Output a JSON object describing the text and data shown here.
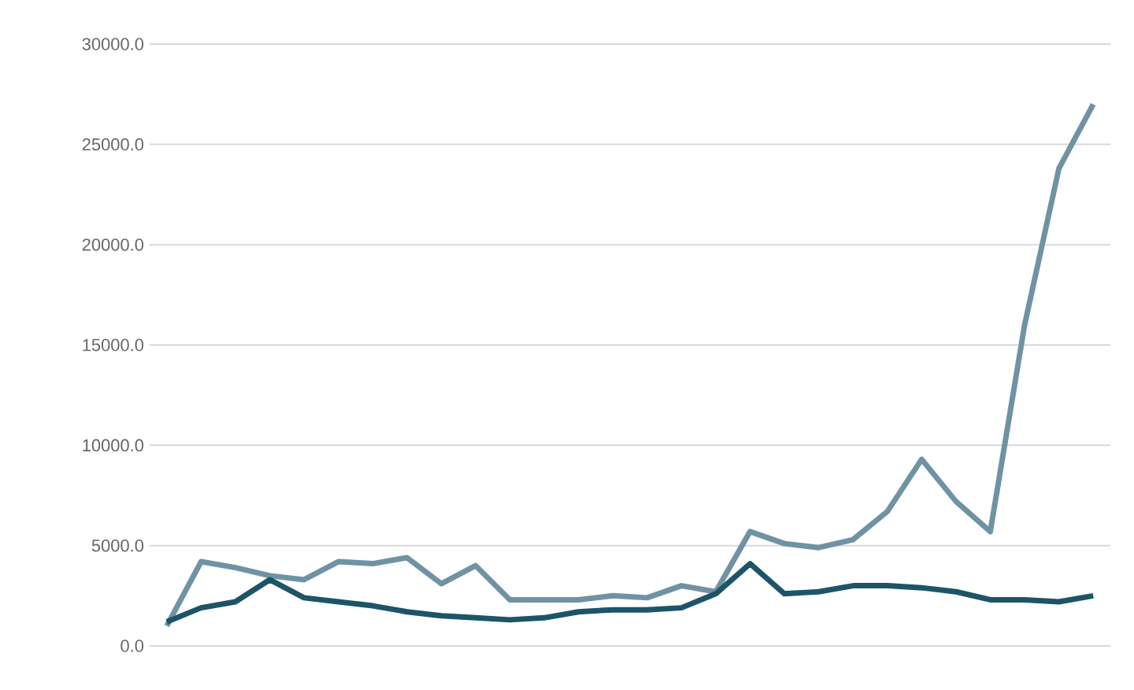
{
  "chart_data": {
    "type": "line",
    "categories": [
      null,
      null,
      null,
      null,
      null,
      null,
      null,
      null,
      null,
      null,
      null,
      null,
      null,
      null,
      null,
      null,
      null,
      null,
      null,
      null,
      null,
      null,
      null,
      null,
      null,
      null,
      null,
      null
    ],
    "series": [
      {
        "color": "#6f93a4",
        "values": [
          1000,
          4200,
          3900,
          3500,
          3300,
          4200,
          4100,
          4400,
          3100,
          4000,
          2300,
          2300,
          2300,
          2500,
          2400,
          3000,
          2700,
          5700,
          5100,
          4900,
          5300,
          6700,
          9300,
          7200,
          5700,
          16000,
          23800,
          27000
        ]
      },
      {
        "color": "#1d5468",
        "values": [
          1200,
          1900,
          2200,
          3300,
          2400,
          2200,
          2000,
          1700,
          1500,
          1400,
          1300,
          1400,
          1700,
          1800,
          1800,
          1900,
          2600,
          4100,
          2600,
          2700,
          3000,
          3000,
          2900,
          2700,
          2300,
          2300,
          2200,
          2500
        ]
      }
    ],
    "ylim": [
      0,
      30000
    ],
    "yticks": [
      {
        "value": 0,
        "label": "0.0"
      },
      {
        "value": 5000,
        "label": "5000.0"
      },
      {
        "value": 10000,
        "label": "10000.0"
      },
      {
        "value": 15000,
        "label": "15000.0"
      },
      {
        "value": 20000,
        "label": "20000.0"
      },
      {
        "value": 25000,
        "label": "25000.0"
      },
      {
        "value": 30000,
        "label": "30000.0"
      }
    ],
    "grid": "y",
    "marker": "none",
    "line_style": "solid"
  }
}
